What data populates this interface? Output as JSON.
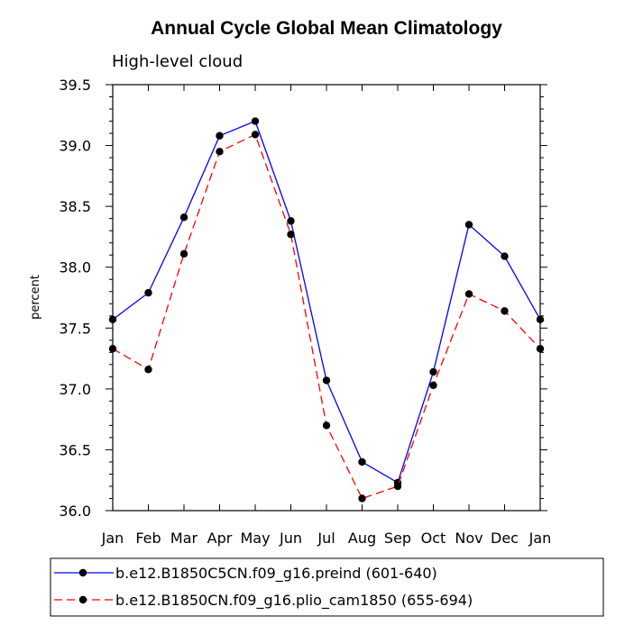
{
  "chart_data": {
    "type": "line",
    "title": "Annual Cycle Global Mean Climatology",
    "subtitle": "High-level cloud",
    "ylabel": "percent",
    "xlabel": "",
    "categories": [
      "Jan",
      "Feb",
      "Mar",
      "Apr",
      "May",
      "Jun",
      "Jul",
      "Aug",
      "Sep",
      "Oct",
      "Nov",
      "Dec",
      "Jan"
    ],
    "ylim": [
      36.0,
      39.5
    ],
    "yticks": [
      "36.0",
      "36.5",
      "37.0",
      "37.5",
      "38.0",
      "38.5",
      "39.0",
      "39.5"
    ],
    "series": [
      {
        "name": "b.e12.B1850C5CN.f09_g16.preind (601-640)",
        "color": "#0000ff",
        "dash": "solid",
        "values": [
          37.57,
          37.79,
          38.41,
          39.08,
          39.2,
          38.38,
          37.07,
          36.4,
          36.23,
          37.14,
          38.35,
          38.09,
          37.57
        ]
      },
      {
        "name": "b.e12.B1850CN.f09_g16.plio_cam1850 (655-694)",
        "color": "#ff0000",
        "dash": "dashed",
        "values": [
          37.33,
          37.16,
          38.11,
          38.95,
          39.09,
          38.27,
          36.7,
          36.1,
          36.2,
          37.03,
          37.78,
          37.64,
          37.33
        ]
      }
    ],
    "grid": false,
    "legend_position": "bottom"
  }
}
